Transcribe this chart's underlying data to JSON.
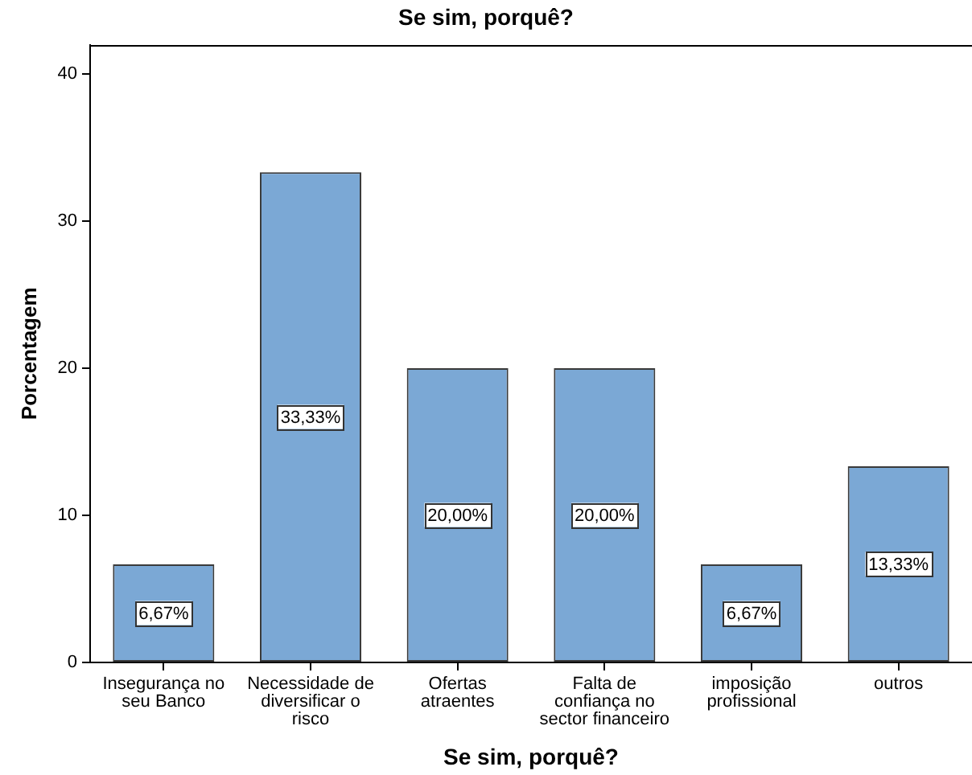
{
  "chart_data": {
    "type": "bar",
    "title": "Se sim, porquê?",
    "xlabel": "Se sim, porquê?",
    "ylabel": "Porcentagem",
    "categories": [
      "Insegurança no seu Banco",
      "Necessidade de diversificar o risco",
      "Ofertas atraentes",
      "Falta de confiança no sector financeiro",
      "imposição profissional",
      "outros"
    ],
    "values": [
      6.67,
      33.33,
      20,
      20,
      6.67,
      13.33
    ],
    "value_labels": [
      "6,67%",
      "33,33%",
      "20,00%",
      "20,00%",
      "6,67%",
      "13,33%"
    ],
    "color": "#7ba8d5",
    "ylim": [
      0,
      42
    ],
    "yticks": [
      0,
      10,
      20,
      30,
      40
    ],
    "grid": false,
    "legend": false
  }
}
